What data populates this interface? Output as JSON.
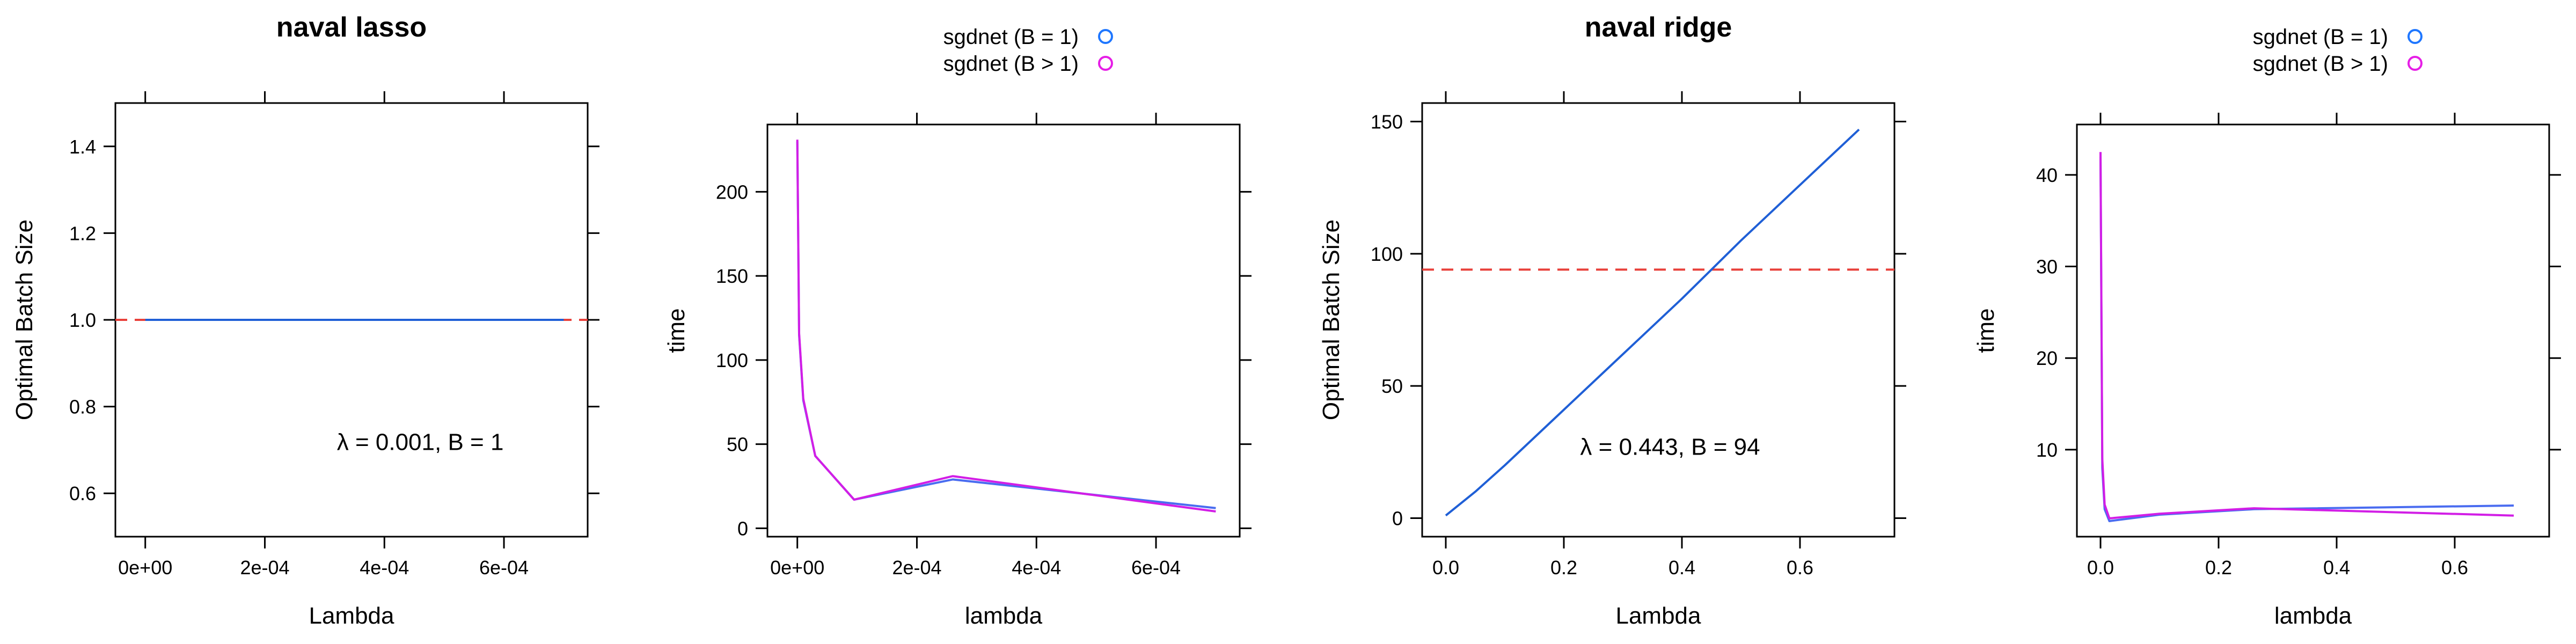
{
  "chart_data": [
    {
      "type": "line",
      "title": "naval lasso",
      "xlabel": "Lambda",
      "ylabel": "Optimal Batch Size",
      "xlim": [
        -5e-05,
        0.00074
      ],
      "ylim": [
        0.5,
        1.5
      ],
      "xticks": [
        0,
        0.0002,
        0.0004,
        0.0006
      ],
      "xtick_labels": [
        "0e+00",
        "2e-04",
        "4e-04",
        "6e-04"
      ],
      "yticks": [
        0.6,
        0.8,
        1.0,
        1.2,
        1.4
      ],
      "ytick_labels": [
        "0.6",
        "0.8",
        "1.0",
        "1.2",
        "1.4"
      ],
      "series": [
        {
          "color": "#1f5fd6",
          "x": [
            0,
            0.0001,
            0.0002,
            0.0003,
            0.0004,
            0.0005,
            0.0006,
            0.0007
          ],
          "y": [
            1,
            1,
            1,
            1,
            1,
            1,
            1,
            1
          ]
        }
      ],
      "hline": {
        "y": 1.0,
        "color": "#e8403a",
        "style": "dashed"
      },
      "annotation": {
        "text": "λ = 0.001, B = 1",
        "x": 0.00046,
        "y": 0.7
      }
    },
    {
      "type": "line",
      "title": "",
      "xlabel": "lambda",
      "ylabel": "time",
      "xlim": [
        -5e-05,
        0.00074
      ],
      "ylim": [
        -5,
        240
      ],
      "xticks": [
        0,
        0.0002,
        0.0004,
        0.0006
      ],
      "xtick_labels": [
        "0e+00",
        "2e-04",
        "4e-04",
        "6e-04"
      ],
      "yticks": [
        0,
        50,
        100,
        150,
        200
      ],
      "ytick_labels": [
        "0",
        "50",
        "100",
        "150",
        "200"
      ],
      "legend": {
        "placement": "top",
        "entries": [
          {
            "label": "sgdnet (B = 1)",
            "color": "#1f77ff"
          },
          {
            "label": "sgdnet (B > 1)",
            "color": "#e61ee6"
          }
        ]
      },
      "series": [
        {
          "name": "sgdnet (B = 1)",
          "color": "#4a6cf0",
          "x": [
            0,
            3e-06,
            1e-05,
            3e-05,
            9.5e-05,
            0.00026,
            0.0007
          ],
          "y": [
            230,
            115,
            76,
            43,
            17,
            29,
            12
          ]
        },
        {
          "name": "sgdnet (B > 1)",
          "color": "#d21ee6",
          "x": [
            0,
            3e-06,
            1e-05,
            3e-05,
            9.5e-05,
            0.00026,
            0.0007
          ],
          "y": [
            231,
            116,
            77,
            43,
            17,
            31,
            10
          ]
        }
      ]
    },
    {
      "type": "line",
      "title": "naval ridge",
      "xlabel": "Lambda",
      "ylabel": "Optimal Batch Size",
      "xlim": [
        -0.04,
        0.76
      ],
      "ylim": [
        -7,
        157
      ],
      "xticks": [
        0,
        0.2,
        0.4,
        0.6
      ],
      "xtick_labels": [
        "0.0",
        "0.2",
        "0.4",
        "0.6"
      ],
      "yticks": [
        0,
        50,
        100,
        150
      ],
      "ytick_labels": [
        "0",
        "50",
        "100",
        "150"
      ],
      "series": [
        {
          "color": "#1f5fd6",
          "x": [
            0,
            0.05,
            0.1,
            0.2,
            0.3,
            0.4,
            0.5,
            0.6,
            0.7
          ],
          "y": [
            1,
            10,
            20,
            41,
            62,
            83,
            105,
            126,
            147
          ]
        }
      ],
      "hline": {
        "y": 94,
        "color": "#e8403a",
        "style": "dashed"
      },
      "annotation": {
        "text": "λ = 0.443, B = 94",
        "x": 0.38,
        "y": 24
      }
    },
    {
      "type": "line",
      "title": "",
      "xlabel": "lambda",
      "ylabel": "time",
      "xlim": [
        -0.04,
        0.76
      ],
      "ylim": [
        0.5,
        45.5
      ],
      "xticks": [
        0,
        0.2,
        0.4,
        0.6
      ],
      "xtick_labels": [
        "0.0",
        "0.2",
        "0.4",
        "0.6"
      ],
      "yticks": [
        10,
        20,
        30,
        40
      ],
      "ytick_labels": [
        "10",
        "20",
        "30",
        "40"
      ],
      "legend": {
        "placement": "top",
        "entries": [
          {
            "label": "sgdnet (B = 1)",
            "color": "#1f77ff"
          },
          {
            "label": "sgdnet (B > 1)",
            "color": "#e61ee6"
          }
        ]
      },
      "series": [
        {
          "name": "sgdnet (B = 1)",
          "color": "#4a6cf0",
          "x": [
            0,
            0.003,
            0.007,
            0.015,
            0.1,
            0.26,
            0.7
          ],
          "y": [
            42,
            8,
            3.5,
            2.2,
            2.9,
            3.5,
            3.9
          ]
        },
        {
          "name": "sgdnet (B > 1)",
          "color": "#d21ee6",
          "x": [
            0,
            0.003,
            0.007,
            0.015,
            0.1,
            0.26,
            0.7
          ],
          "y": [
            42.5,
            9,
            4,
            2.5,
            3.0,
            3.6,
            2.8
          ]
        }
      ]
    }
  ]
}
